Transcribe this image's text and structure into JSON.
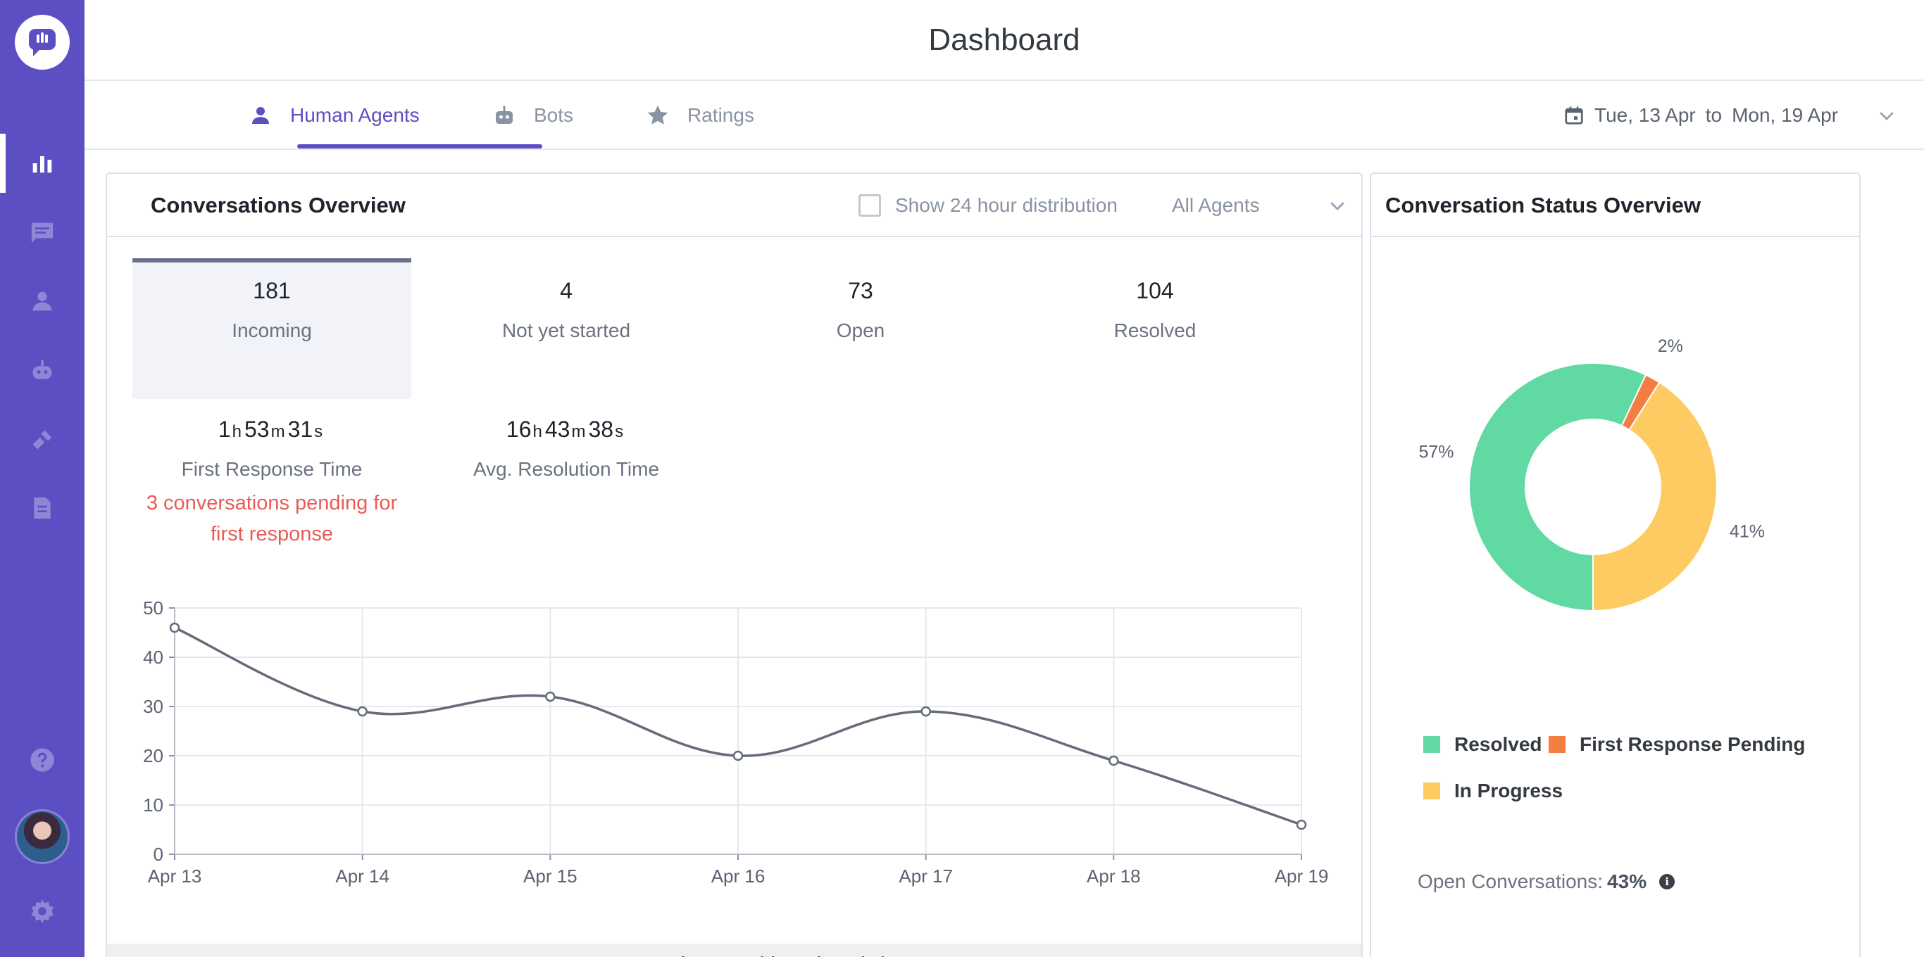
{
  "page": {
    "title": "Dashboard"
  },
  "tabs": [
    {
      "label": "Human Agents",
      "icon": "person-icon",
      "active": true
    },
    {
      "label": "Bots",
      "icon": "robot-icon",
      "active": false
    },
    {
      "label": "Ratings",
      "icon": "star-icon",
      "active": false
    }
  ],
  "date_range": {
    "from": "Tue, 13 Apr",
    "separator": "to",
    "to": "Mon, 19 Apr"
  },
  "overview": {
    "title": "Conversations Overview",
    "show_24h_label": "Show 24 hour distribution",
    "agents_filter": "All Agents",
    "metrics": [
      {
        "value": "181",
        "label": "Incoming",
        "selected": true
      },
      {
        "value": "4",
        "label": "Not yet started"
      },
      {
        "value": "73",
        "label": "Open"
      },
      {
        "value": "104",
        "label": "Resolved"
      }
    ],
    "first_response": {
      "h": "1",
      "m": "53",
      "s": "31",
      "label": "First Response Time",
      "pending": "3 conversations pending for first response"
    },
    "resolution": {
      "h": "16",
      "m": "43",
      "s": "38",
      "label": "Avg. Resolution Time"
    },
    "units": {
      "h": "h",
      "m": "m",
      "s": "s"
    },
    "learn_more": "Learn More about Dashboard Analytics"
  },
  "chart_data": {
    "type": "line",
    "x": [
      "Apr 13",
      "Apr 14",
      "Apr 15",
      "Apr 16",
      "Apr 17",
      "Apr 18",
      "Apr 19"
    ],
    "series": [
      {
        "values": [
          46,
          29,
          32,
          20,
          29,
          19,
          6
        ]
      }
    ],
    "ylim": [
      0,
      50
    ],
    "yticks": [
      0,
      10,
      20,
      30,
      40,
      50
    ],
    "grid": true,
    "line_color": "#646c78"
  },
  "status_overview": {
    "title": "Conversation Status Overview",
    "slices": [
      {
        "label": "Resolved",
        "percent": 57,
        "display": "57%",
        "color": "#60d9a3"
      },
      {
        "label": "First Response Pending",
        "percent": 2,
        "display": "2%",
        "color": "#f47e41"
      },
      {
        "label": "In Progress",
        "percent": 41,
        "display": "41%",
        "color": "#fecb63"
      }
    ],
    "open_conversations_label": "Open Conversations:",
    "open_conversations_value": "43%"
  },
  "sidebar": {
    "icons": [
      "reports-icon",
      "conversations-icon",
      "contacts-icon",
      "bot-icon",
      "integrations-icon",
      "documents-icon"
    ],
    "bottom_icons": [
      "help-icon",
      "avatar",
      "settings-icon"
    ]
  }
}
